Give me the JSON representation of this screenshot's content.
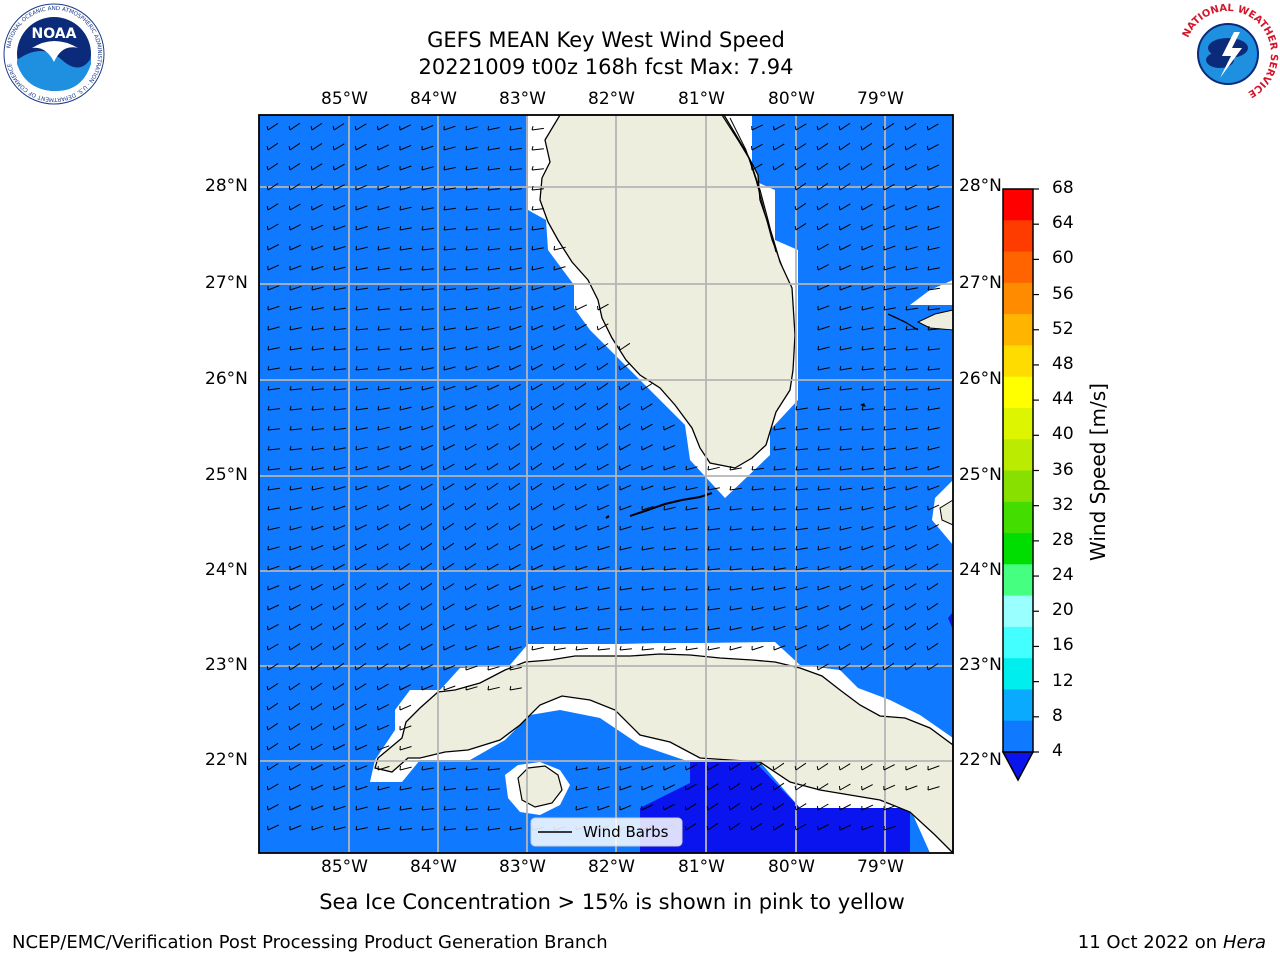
{
  "title": {
    "line1": "GEFS MEAN Key West Wind Speed",
    "line2": "20221009 t00z 168h fcst   Max: 7.94"
  },
  "map": {
    "lon_labels": [
      "85°W",
      "84°W",
      "83°W",
      "82°W",
      "81°W",
      "80°W",
      "79°W"
    ],
    "lat_labels": [
      "28°N",
      "27°N",
      "26°N",
      "25°N",
      "24°N",
      "23°N",
      "22°N"
    ],
    "colors": {
      "ocean": "#0f7aff",
      "land": "#eeeede",
      "coast_buffer": "#ffffff",
      "low_wind": "#0a14ef",
      "grid": "#b5b5b5"
    },
    "legend": {
      "label": "Wind Barbs"
    }
  },
  "colorbar": {
    "label": "Wind Speed [m/s]",
    "ticks": [
      "68",
      "64",
      "60",
      "56",
      "52",
      "48",
      "44",
      "40",
      "36",
      "32",
      "28",
      "24",
      "20",
      "16",
      "12",
      "8",
      "4"
    ],
    "colors": [
      "#ff0000",
      "#ff3c00",
      "#ff6400",
      "#ff8c00",
      "#ffb400",
      "#ffdc00",
      "#ffff00",
      "#ddf500",
      "#bbeb00",
      "#88e000",
      "#44dd00",
      "#00dd00",
      "#44ff80",
      "#99ffff",
      "#44ffff",
      "#00eeee",
      "#0aaaff",
      "#0f7aff"
    ],
    "extend_color": "#0a14ef"
  },
  "subtitle": "Sea Ice Concentration > 15% is shown in pink to yellow",
  "footer": {
    "left": "NCEP/EMC/Verification Post Processing Product Generation Branch",
    "right_prefix": "11 Oct 2022 on ",
    "right_host": "Hera"
  },
  "logos": {
    "noaa": {
      "text": "NOAA",
      "ring": "NATIONAL OCEANIC AND ATMOSPHERIC ADMINISTRATION · U.S. DEPARTMENT OF COMMERCE"
    },
    "nws": {
      "ring": "NATIONAL WEATHER SERVICE"
    }
  }
}
